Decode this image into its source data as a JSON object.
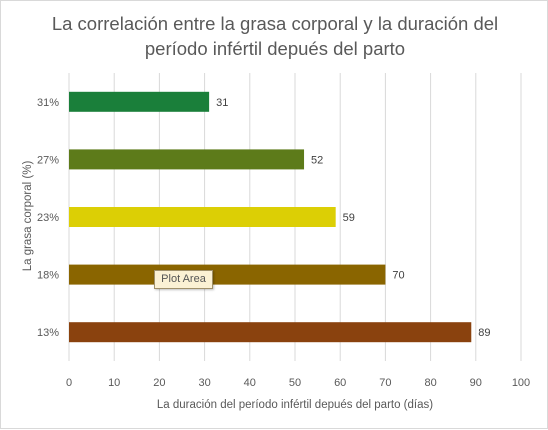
{
  "chart_data": {
    "type": "bar",
    "orientation": "horizontal",
    "title_lines": [
      "La correlación entre la grasa corporal y la duración del",
      "período infértil depués del parto"
    ],
    "xlabel": "La duración del período infértil depués del parto (días)",
    "ylabel": "La grasa corporal (%)",
    "categories": [
      "31%",
      "27%",
      "23%",
      "18%",
      "13%"
    ],
    "values": [
      31,
      52,
      59,
      70,
      89
    ],
    "colors": [
      "#1a7f3a",
      "#5d7b1a",
      "#dccf05",
      "#8a6500",
      "#8a420e"
    ],
    "xlim": [
      0,
      100
    ],
    "xticks": [
      0,
      10,
      20,
      30,
      40,
      50,
      60,
      70,
      80,
      90,
      100
    ],
    "grid": true,
    "legend": "none",
    "data_labels": true
  },
  "tooltip": {
    "text": "Plot Area"
  }
}
